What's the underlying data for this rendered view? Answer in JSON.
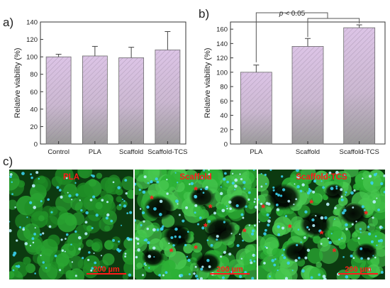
{
  "chart_data": [
    {
      "type": "bar",
      "panel_label": "a)",
      "categories": [
        "Control",
        "PLA",
        "Scaffold",
        "Scaffold-TCS"
      ],
      "values": [
        100,
        101,
        99,
        108
      ],
      "errors": [
        3,
        11,
        12,
        21
      ],
      "ylabel": "Relative viability (%)",
      "ylim": [
        0,
        140
      ],
      "yticks": [
        "0",
        "20",
        "40",
        "60",
        "80",
        "100",
        "120",
        "140"
      ],
      "grid": false
    },
    {
      "type": "bar",
      "panel_label": "b)",
      "categories": [
        "PLA",
        "Scaffold",
        "Scaffold-TCS"
      ],
      "values": [
        100,
        136,
        162
      ],
      "errors": [
        10,
        11,
        4
      ],
      "ylabel": "Relative viability (%)",
      "ylim": [
        0,
        170
      ],
      "yticks": [
        "0",
        "20",
        "40",
        "60",
        "80",
        "100",
        "120",
        "140",
        "160"
      ],
      "grid": false,
      "significance": {
        "text_italic": "p",
        "text_rest": " < 0.05"
      }
    }
  ],
  "micrographs": {
    "panel_label": "c)",
    "images": [
      {
        "label": "PLA",
        "scale_bar": "200 µm",
        "stars": 0
      },
      {
        "label": "Scaffold",
        "scale_bar": "200 µm",
        "stars": 7
      },
      {
        "label": "Scaffold-TCS",
        "scale_bar": "200 µm",
        "stars": 6
      }
    ],
    "star_symbol": "*"
  },
  "colors": {
    "bar_top": "#dcc4e6",
    "bar_bottom": "#9a9a9a",
    "bar_stroke": "#6a6a6a",
    "hatch": "#8f7f96",
    "label_red": "#ff1a1a",
    "cell_green": "#22a22a",
    "nuclei_blue": "#3ad0ee"
  }
}
